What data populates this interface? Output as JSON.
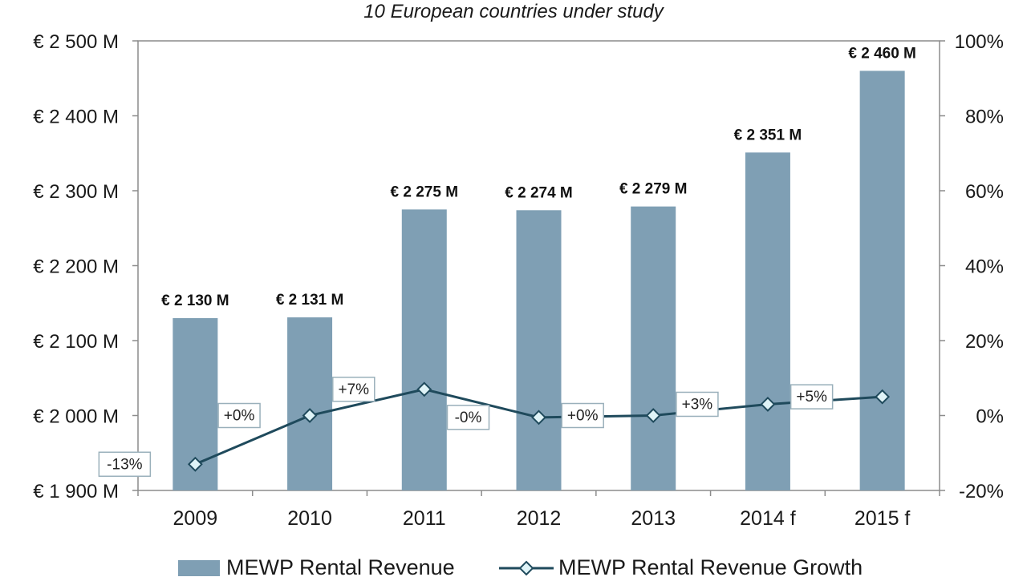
{
  "chart_data": {
    "type": "bar",
    "subtitle": "10 European countries under study",
    "categories": [
      "2009",
      "2010",
      "2011",
      "2012",
      "2013",
      "2014 f",
      "2015 f"
    ],
    "series": [
      {
        "name": "MEWP Rental Revenue",
        "type": "bar",
        "axis": "left",
        "values": [
          2130,
          2131,
          2275,
          2274,
          2279,
          2351,
          2460
        ],
        "data_labels": [
          "€ 2 130 M",
          "€ 2 131 M",
          "€ 2 275 M",
          "€ 2 274 M",
          "€ 2 279 M",
          "€ 2 351 M",
          "€ 2 460 M"
        ],
        "color": "#7f9fb4"
      },
      {
        "name": "MEWP Rental Revenue Growth",
        "type": "line",
        "axis": "right",
        "values": [
          -13,
          0,
          7,
          -0.5,
          0,
          3,
          5
        ],
        "data_labels": [
          "-13%",
          "+0%",
          "+7%",
          "-0%",
          "+0%",
          "+3%",
          "+5%"
        ],
        "color": "#1f4a5c",
        "marker_fill": "#dff3f7"
      }
    ],
    "y_left": {
      "ylim": [
        1900,
        2500
      ],
      "ticks": [
        1900,
        2000,
        2100,
        2200,
        2300,
        2400,
        2500
      ],
      "tick_labels": [
        "€ 1 900 M",
        "€ 2 000 M",
        "€ 2 100 M",
        "€ 2 200 M",
        "€ 2 300 M",
        "€ 2 400 M",
        "€ 2 500 M"
      ]
    },
    "y_right": {
      "ylim": [
        -20,
        100
      ],
      "ticks": [
        -20,
        0,
        20,
        40,
        60,
        80,
        100
      ],
      "tick_labels": [
        "-20%",
        "0%",
        "20%",
        "40%",
        "60%",
        "80%",
        "100%"
      ]
    },
    "grid": false,
    "legend_position": "bottom"
  }
}
